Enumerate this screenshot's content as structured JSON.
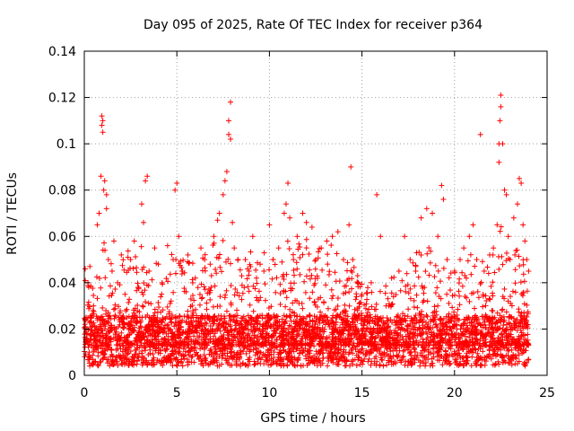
{
  "chart_data": {
    "type": "scatter",
    "title": "Day 095 of 2025, Rate Of TEC Index for receiver p364",
    "xlabel": "GPS time / hours",
    "ylabel": "ROTI / TECUs",
    "xlim": [
      0,
      25
    ],
    "ylim": [
      0,
      0.14
    ],
    "xticks": [
      0,
      5,
      10,
      15,
      20,
      25
    ],
    "xtick_labels": [
      "0",
      "5",
      "10",
      "15",
      "20",
      "25"
    ],
    "yticks": [
      0,
      0.02,
      0.04,
      0.06,
      0.08,
      0.1,
      0.12,
      0.14
    ],
    "ytick_labels": [
      "0",
      "0.02",
      "0.04",
      "0.06",
      "0.08",
      "0.1",
      "0.12",
      "0.14"
    ],
    "grid": true,
    "marker": "+",
    "series": [
      {
        "name": "ROTI",
        "color": "#ff0000",
        "points": [
          [
            0.05,
            0.046
          ],
          [
            0.1,
            0.025
          ],
          [
            0.2,
            0.04
          ],
          [
            0.3,
            0.047
          ],
          [
            0.5,
            0.03
          ],
          [
            0.7,
            0.065
          ],
          [
            0.8,
            0.07
          ],
          [
            0.9,
            0.086
          ],
          [
            0.95,
            0.112
          ],
          [
            0.95,
            0.108
          ],
          [
            1.0,
            0.105
          ],
          [
            1.0,
            0.11
          ],
          [
            1.05,
            0.08
          ],
          [
            1.1,
            0.084
          ],
          [
            1.2,
            0.078
          ],
          [
            1.2,
            0.072
          ],
          [
            1.3,
            0.05
          ],
          [
            1.5,
            0.045
          ],
          [
            1.6,
            0.058
          ],
          [
            1.8,
            0.04
          ],
          [
            2.0,
            0.052
          ],
          [
            2.2,
            0.035
          ],
          [
            2.5,
            0.05
          ],
          [
            2.7,
            0.058
          ],
          [
            2.9,
            0.038
          ],
          [
            3.1,
            0.074
          ],
          [
            3.2,
            0.066
          ],
          [
            3.3,
            0.084
          ],
          [
            3.4,
            0.086
          ],
          [
            3.5,
            0.045
          ],
          [
            3.8,
            0.055
          ],
          [
            4.0,
            0.048
          ],
          [
            4.2,
            0.04
          ],
          [
            4.5,
            0.056
          ],
          [
            4.8,
            0.05
          ],
          [
            4.9,
            0.08
          ],
          [
            5.0,
            0.083
          ],
          [
            5.1,
            0.06
          ],
          [
            5.3,
            0.045
          ],
          [
            5.6,
            0.052
          ],
          [
            6.0,
            0.042
          ],
          [
            6.3,
            0.055
          ],
          [
            6.5,
            0.05
          ],
          [
            6.8,
            0.048
          ],
          [
            7.0,
            0.06
          ],
          [
            7.2,
            0.067
          ],
          [
            7.3,
            0.07
          ],
          [
            7.5,
            0.078
          ],
          [
            7.6,
            0.084
          ],
          [
            7.7,
            0.088
          ],
          [
            7.8,
            0.11
          ],
          [
            7.8,
            0.104
          ],
          [
            7.9,
            0.118
          ],
          [
            7.9,
            0.102
          ],
          [
            8.0,
            0.066
          ],
          [
            8.1,
            0.055
          ],
          [
            8.3,
            0.05
          ],
          [
            8.5,
            0.043
          ],
          [
            8.7,
            0.05
          ],
          [
            8.9,
            0.045
          ],
          [
            9.1,
            0.06
          ],
          [
            9.3,
            0.042
          ],
          [
            9.5,
            0.048
          ],
          [
            9.7,
            0.045
          ],
          [
            10.0,
            0.065
          ],
          [
            10.2,
            0.05
          ],
          [
            10.5,
            0.055
          ],
          [
            10.8,
            0.07
          ],
          [
            10.9,
            0.074
          ],
          [
            11.0,
            0.083
          ],
          [
            11.1,
            0.068
          ],
          [
            11.3,
            0.05
          ],
          [
            11.5,
            0.06
          ],
          [
            11.8,
            0.07
          ],
          [
            12.0,
            0.066
          ],
          [
            12.3,
            0.064
          ],
          [
            12.5,
            0.05
          ],
          [
            12.8,
            0.055
          ],
          [
            13.1,
            0.058
          ],
          [
            13.4,
            0.06
          ],
          [
            13.7,
            0.062
          ],
          [
            14.0,
            0.05
          ],
          [
            14.3,
            0.065
          ],
          [
            14.4,
            0.09
          ],
          [
            14.5,
            0.05
          ],
          [
            14.8,
            0.04
          ],
          [
            15.0,
            0.035
          ],
          [
            15.5,
            0.04
          ],
          [
            15.8,
            0.078
          ],
          [
            16.0,
            0.06
          ],
          [
            16.3,
            0.03
          ],
          [
            16.6,
            0.042
          ],
          [
            17.0,
            0.045
          ],
          [
            17.3,
            0.06
          ],
          [
            17.6,
            0.05
          ],
          [
            17.9,
            0.045
          ],
          [
            18.2,
            0.068
          ],
          [
            18.5,
            0.072
          ],
          [
            18.8,
            0.07
          ],
          [
            19.1,
            0.06
          ],
          [
            19.3,
            0.082
          ],
          [
            19.4,
            0.076
          ],
          [
            19.6,
            0.05
          ],
          [
            20.0,
            0.045
          ],
          [
            20.3,
            0.05
          ],
          [
            20.5,
            0.055
          ],
          [
            20.8,
            0.06
          ],
          [
            21.0,
            0.065
          ],
          [
            21.2,
            0.05
          ],
          [
            21.4,
            0.104
          ],
          [
            21.6,
            0.045
          ],
          [
            21.9,
            0.052
          ],
          [
            22.1,
            0.055
          ],
          [
            22.3,
            0.065
          ],
          [
            22.4,
            0.1
          ],
          [
            22.4,
            0.092
          ],
          [
            22.45,
            0.11
          ],
          [
            22.5,
            0.121
          ],
          [
            22.5,
            0.116
          ],
          [
            22.6,
            0.1
          ],
          [
            22.7,
            0.08
          ],
          [
            22.8,
            0.078
          ],
          [
            22.9,
            0.06
          ],
          [
            23.0,
            0.05
          ],
          [
            23.2,
            0.068
          ],
          [
            23.4,
            0.074
          ],
          [
            23.5,
            0.085
          ],
          [
            23.6,
            0.083
          ],
          [
            23.7,
            0.065
          ],
          [
            23.8,
            0.058
          ],
          [
            23.9,
            0.05
          ],
          [
            24.0,
            0.045
          ]
        ],
        "baseline": {
          "x_range": [
            0,
            24
          ],
          "typical": 0.013,
          "low": 0.004,
          "high": 0.026
        },
        "envelope": [
          [
            0,
            0.045
          ],
          [
            0.5,
            0.042
          ],
          [
            1,
            0.06
          ],
          [
            1.5,
            0.048
          ],
          [
            2,
            0.052
          ],
          [
            2.5,
            0.055
          ],
          [
            3,
            0.06
          ],
          [
            3.5,
            0.05
          ],
          [
            4,
            0.048
          ],
          [
            4.5,
            0.052
          ],
          [
            5,
            0.055
          ],
          [
            5.5,
            0.05
          ],
          [
            6,
            0.048
          ],
          [
            6.5,
            0.052
          ],
          [
            7,
            0.058
          ],
          [
            7.5,
            0.06
          ],
          [
            8,
            0.055
          ],
          [
            8.5,
            0.05
          ],
          [
            9,
            0.055
          ],
          [
            9.5,
            0.05
          ],
          [
            10,
            0.06
          ],
          [
            10.5,
            0.058
          ],
          [
            11,
            0.06
          ],
          [
            11.5,
            0.058
          ],
          [
            12,
            0.06
          ],
          [
            12.5,
            0.055
          ],
          [
            13,
            0.055
          ],
          [
            13.5,
            0.058
          ],
          [
            14,
            0.05
          ],
          [
            14.5,
            0.048
          ],
          [
            15,
            0.04
          ],
          [
            15.5,
            0.038
          ],
          [
            16,
            0.04
          ],
          [
            16.5,
            0.042
          ],
          [
            17,
            0.048
          ],
          [
            17.5,
            0.05
          ],
          [
            18,
            0.055
          ],
          [
            18.5,
            0.058
          ],
          [
            19,
            0.05
          ],
          [
            19.5,
            0.048
          ],
          [
            20,
            0.045
          ],
          [
            20.5,
            0.05
          ],
          [
            21,
            0.055
          ],
          [
            21.5,
            0.05
          ],
          [
            22,
            0.055
          ],
          [
            22.5,
            0.065
          ],
          [
            23,
            0.055
          ],
          [
            23.5,
            0.06
          ],
          [
            24,
            0.04
          ]
        ]
      }
    ]
  }
}
